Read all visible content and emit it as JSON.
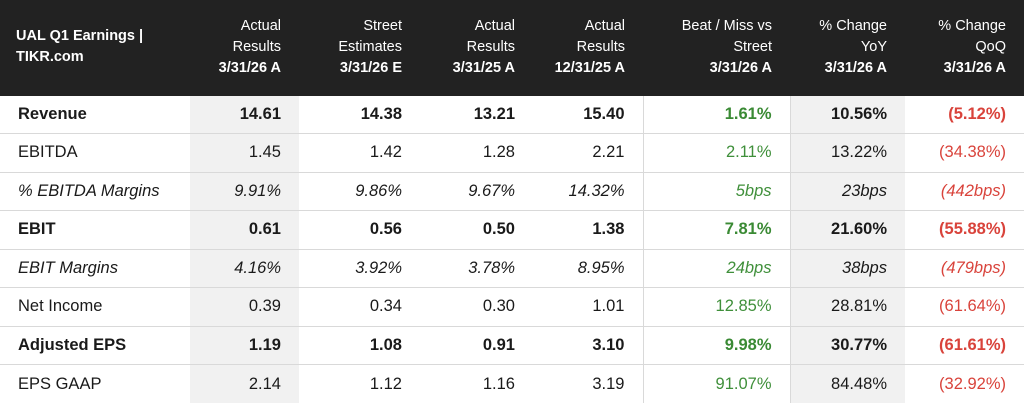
{
  "header": {
    "title_line1": "UAL Q1 Earnings |",
    "title_line2": "TIKR.com",
    "columns": [
      {
        "label1": "Actual",
        "label2": "Results",
        "period": "3/31/26 A"
      },
      {
        "label1": "Street",
        "label2": "Estimates",
        "period": "3/31/26 E"
      },
      {
        "label1": "Actual",
        "label2": "Results",
        "period": "3/31/25 A"
      },
      {
        "label1": "Actual",
        "label2": "Results",
        "period": "12/31/25 A"
      },
      {
        "label1": "Beat / Miss vs",
        "label2": "Street",
        "period": "3/31/26 A"
      },
      {
        "label1": "% Change",
        "label2": "YoY",
        "period": "3/31/26 A"
      },
      {
        "label1": "% Change",
        "label2": "QoQ",
        "period": "3/31/26 A"
      }
    ]
  },
  "rows": [
    {
      "name": "Revenue",
      "style": "bold",
      "values": [
        "14.61",
        "14.38",
        "13.21",
        "15.40",
        "1.61%",
        "10.56%",
        "(5.12%)"
      ]
    },
    {
      "name": "EBITDA",
      "style": "normal",
      "values": [
        "1.45",
        "1.42",
        "1.28",
        "2.21",
        "2.11%",
        "13.22%",
        "(34.38%)"
      ]
    },
    {
      "name": "% EBITDA Margins",
      "style": "italic",
      "values": [
        "9.91%",
        "9.86%",
        "9.67%",
        "14.32%",
        "5bps",
        "23bps",
        "(442bps)"
      ]
    },
    {
      "name": "EBIT",
      "style": "bold",
      "values": [
        "0.61",
        "0.56",
        "0.50",
        "1.38",
        "7.81%",
        "21.60%",
        "(55.88%)"
      ]
    },
    {
      "name": "EBIT Margins",
      "style": "italic",
      "values": [
        "4.16%",
        "3.92%",
        "3.78%",
        "8.95%",
        "24bps",
        "38bps",
        "(479bps)"
      ]
    },
    {
      "name": "Net Income",
      "style": "normal",
      "values": [
        "0.39",
        "0.34",
        "0.30",
        "1.01",
        "12.85%",
        "28.81%",
        "(61.64%)"
      ]
    },
    {
      "name": "Adjusted EPS",
      "style": "bold",
      "values": [
        "1.19",
        "1.08",
        "0.91",
        "3.10",
        "9.98%",
        "30.77%",
        "(61.61%)"
      ]
    },
    {
      "name": "EPS GAAP",
      "style": "normal",
      "values": [
        "2.14",
        "1.12",
        "1.16",
        "3.19",
        "91.07%",
        "84.48%",
        "(32.92%)"
      ]
    }
  ],
  "colors": {
    "header_bg": "#222222",
    "positive": "#3f8f3a",
    "negative": "#d9433b",
    "shaded_column": "#f1f1f1"
  }
}
